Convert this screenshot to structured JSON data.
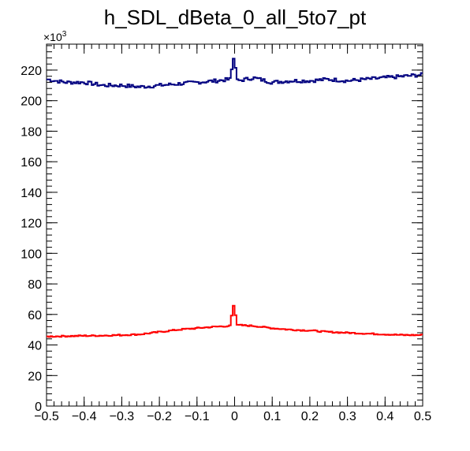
{
  "chart_data": {
    "type": "line",
    "title": "h_SDL_dBeta_0_all_5to7_pt",
    "xlabel": "",
    "ylabel": "",
    "xlim": [
      -0.5,
      0.5
    ],
    "ylim": [
      0,
      237000
    ],
    "y_multiplier_label": "×10",
    "y_multiplier_exponent": "3",
    "x_ticks": [
      -0.5,
      -0.4,
      -0.3,
      -0.2,
      -0.1,
      0,
      0.1,
      0.2,
      0.3,
      0.4,
      0.5
    ],
    "x_tick_labels": [
      "−0.5",
      "−0.4",
      "−0.3",
      "−0.2",
      "−0.1",
      "0",
      "0.1",
      "0.2",
      "0.3",
      "0.4",
      "0.5"
    ],
    "y_ticks": [
      0,
      20000,
      40000,
      60000,
      80000,
      100000,
      120000,
      140000,
      160000,
      180000,
      200000,
      220000
    ],
    "y_tick_labels": [
      "0",
      "20",
      "40",
      "60",
      "80",
      "100",
      "120",
      "140",
      "160",
      "180",
      "200",
      "220"
    ],
    "grid": false,
    "series": [
      {
        "color": "#000080",
        "x": [
          -0.5,
          -0.45,
          -0.4,
          -0.35,
          -0.3,
          -0.25,
          -0.2,
          -0.15,
          -0.1,
          -0.05,
          -0.01,
          -0.005,
          0,
          0.005,
          0.01,
          0.05,
          0.1,
          0.15,
          0.2,
          0.25,
          0.3,
          0.35,
          0.4,
          0.45,
          0.5
        ],
        "y": [
          214000,
          212000,
          212000,
          210000,
          210000,
          209000,
          210000,
          211000,
          212000,
          213000,
          214000,
          227000,
          228000,
          215000,
          213000,
          215000,
          212000,
          213000,
          213000,
          214000,
          213000,
          214000,
          215000,
          216000,
          217000
        ]
      },
      {
        "color": "#ff0000",
        "x": [
          -0.5,
          -0.45,
          -0.4,
          -0.35,
          -0.3,
          -0.25,
          -0.2,
          -0.15,
          -0.1,
          -0.05,
          -0.01,
          -0.005,
          0,
          0.005,
          0.01,
          0.05,
          0.1,
          0.15,
          0.2,
          0.25,
          0.3,
          0.35,
          0.4,
          0.45,
          0.5
        ],
        "y": [
          45500,
          45800,
          46000,
          46200,
          46500,
          47000,
          48500,
          50000,
          51000,
          52000,
          52500,
          66000,
          65500,
          53500,
          53000,
          52500,
          51000,
          50000,
          49500,
          48500,
          48000,
          47500,
          47000,
          46500,
          46500
        ]
      }
    ]
  }
}
